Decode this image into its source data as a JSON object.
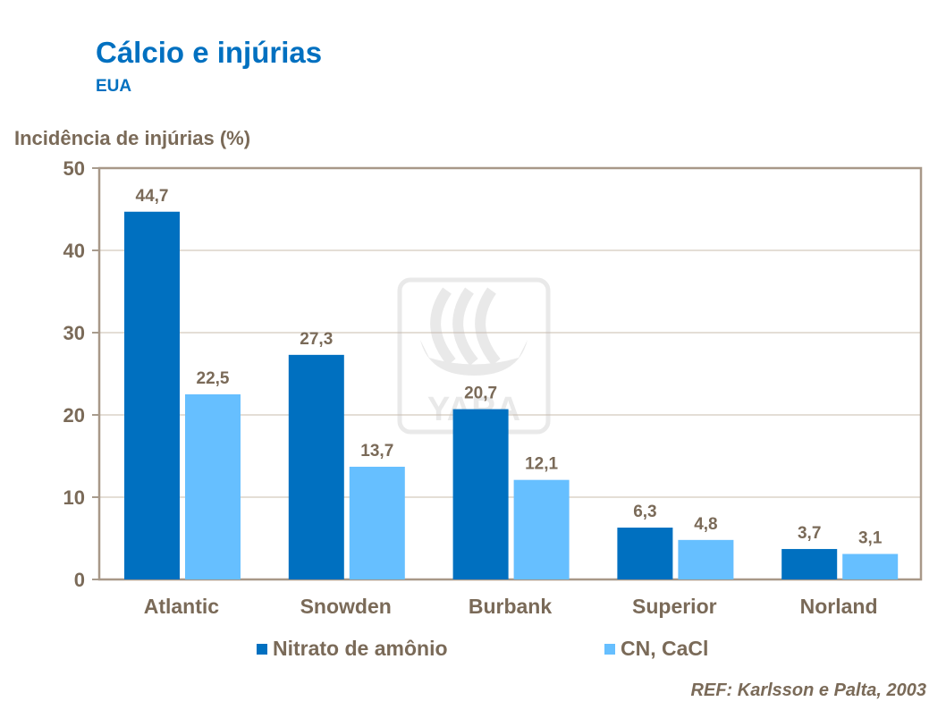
{
  "title": "Cálcio e injúrias",
  "subtitle": "EUA",
  "reference": "REF: Karlsson e Palta, 2003",
  "watermark": "YARA",
  "chart_data": {
    "type": "bar",
    "title": "Cálcio e injúrias",
    "subtitle": "EUA",
    "ylabel": "Incidência de injúrias (%)",
    "xlabel": "",
    "ylim": [
      0,
      50
    ],
    "yticks": [
      0,
      10,
      20,
      30,
      40,
      50
    ],
    "grid": true,
    "legend": "bottom",
    "categories": [
      "Atlantic",
      "Snowden",
      "Burbank",
      "Superior",
      "Norland"
    ],
    "series": [
      {
        "name": "Nitrato de amônio",
        "color": "#0070c0",
        "values": [
          44.7,
          27.3,
          20.7,
          6.3,
          3.7
        ],
        "labels": [
          "44,7",
          "27,3",
          "20,7",
          "6,3",
          "3,7"
        ]
      },
      {
        "name": "CN, CaCl",
        "color": "#66bfff",
        "values": [
          22.5,
          13.7,
          12.1,
          4.8,
          3.1
        ],
        "labels": [
          "22,5",
          "13,7",
          "12,1",
          "4,8",
          "3,1"
        ]
      }
    ]
  }
}
